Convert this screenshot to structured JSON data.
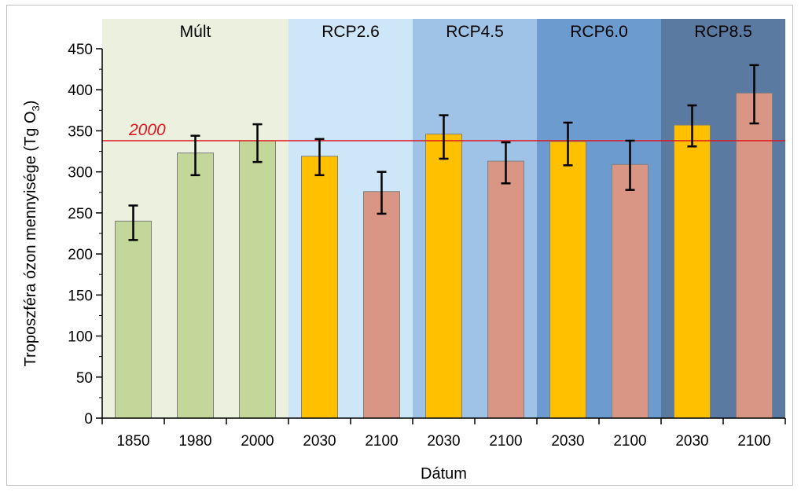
{
  "chart_data": {
    "type": "bar",
    "xlabel": "Dátum",
    "ylabel": "Troposzféra ózon mennyisége (Tg O",
    "ylabel_sub": "3",
    "ylabel_close": ")",
    "ylim": [
      0,
      450
    ],
    "yticks": [
      0,
      50,
      100,
      150,
      200,
      250,
      300,
      350,
      400,
      450
    ],
    "grid": false,
    "categories": [
      "1850",
      "1980",
      "2000",
      "2030",
      "2100",
      "2030",
      "2100",
      "2030",
      "2100",
      "2030",
      "2100"
    ],
    "values": [
      240,
      323,
      338,
      319,
      276,
      346,
      313,
      337,
      309,
      357,
      396
    ],
    "error_low": [
      217,
      296,
      312,
      296,
      249,
      316,
      286,
      308,
      278,
      331,
      359
    ],
    "error_high": [
      259,
      344,
      358,
      340,
      300,
      369,
      336,
      360,
      338,
      381,
      430
    ],
    "bar_colors": [
      "#c4d79b",
      "#c4d79b",
      "#c4d79b",
      "#ffc000",
      "#d99685",
      "#ffc000",
      "#d99685",
      "#ffc000",
      "#d99685",
      "#ffc000",
      "#d99685"
    ],
    "regions": [
      {
        "label": "Múlt",
        "start": 0,
        "end": 2,
        "color": "#ebf1de"
      },
      {
        "label": "RCP2.6",
        "start": 3,
        "end": 4,
        "color": "#cde6f8"
      },
      {
        "label": "RCP4.5",
        "start": 5,
        "end": 6,
        "color": "#9fc2e7"
      },
      {
        "label": "RCP6.0",
        "start": 7,
        "end": 8,
        "color": "#6c9bd0"
      },
      {
        "label": "RCP8.5",
        "start": 9,
        "end": 10,
        "color": "#5a7aa1"
      }
    ],
    "reference_line": {
      "value": 338,
      "label": "2000",
      "color": "#e0141e"
    }
  }
}
